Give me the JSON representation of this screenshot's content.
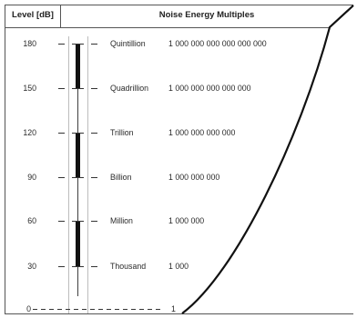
{
  "header": {
    "level_title": "Level [dB]",
    "multiples_title": "Noise Energy Multiples"
  },
  "rows": [
    {
      "level": "180",
      "name": "Quintillion",
      "value": "1 000 000 000 000 000 000"
    },
    {
      "level": "150",
      "name": "Quadrillion",
      "value": "1 000 000 000 000 000"
    },
    {
      "level": "120",
      "name": "Trillion",
      "value": "1 000 000 000 000"
    },
    {
      "level": "90",
      "name": "Billion",
      "value": "1 000 000 000"
    },
    {
      "level": "60",
      "name": "Million",
      "value": "1 000 000"
    },
    {
      "level": "30",
      "name": "Thousand",
      "value": "1 000"
    },
    {
      "level": "0",
      "name": "",
      "value": "1"
    }
  ]
}
